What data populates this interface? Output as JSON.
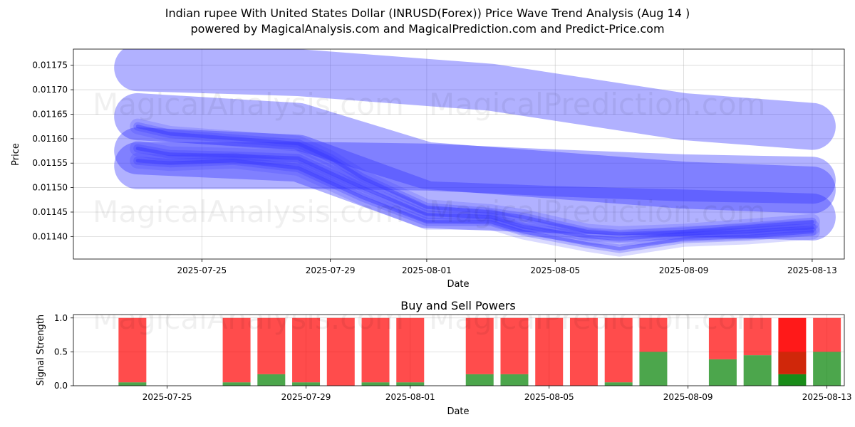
{
  "title": "Indian rupee With United States Dollar (INRUSD(Forex)) Price Wave Trend Analysis (Aug 14 )",
  "subtitle": "powered by MagicalAnalysis.com and MagicalPrediction.com and Predict-Price.com",
  "watermarks": [
    "MagicalAnalysis.com",
    "MagicalPrediction.com"
  ],
  "colors": {
    "wave": "#3333ff",
    "sell": "#ff0000",
    "buy": "#008000"
  },
  "chart_data": [
    {
      "type": "line",
      "xlabel": "Date",
      "ylabel": "Price",
      "x_ticks": [
        "2025-07-25",
        "2025-07-29",
        "2025-08-01",
        "2025-08-05",
        "2025-08-09",
        "2025-08-13"
      ],
      "y_ticks": [
        "0.01140",
        "0.01145",
        "0.01150",
        "0.01155",
        "0.01160",
        "0.01165",
        "0.01170",
        "0.01175"
      ],
      "xlim": [
        "2025-07-21",
        "2025-08-14"
      ],
      "ylim": [
        0.011354,
        0.011783
      ],
      "grid": true,
      "bands": [
        {
          "name": "",
          "x": [
            "2025-07-23",
            "2025-07-28",
            "2025-08-01",
            "2025-08-03",
            "2025-08-06",
            "2025-08-09",
            "2025-08-13"
          ],
          "values": [
            0.011745,
            0.011735,
            0.011715,
            0.011705,
            0.011675,
            0.011645,
            0.011625
          ]
        },
        {
          "name": "",
          "x": [
            "2025-07-23",
            "2025-07-28",
            "2025-08-01",
            "2025-08-05",
            "2025-08-09",
            "2025-08-13"
          ],
          "values": [
            0.011645,
            0.011625,
            0.011545,
            0.011525,
            0.011505,
            0.011495
          ]
        },
        {
          "name": "",
          "x": [
            "2025-07-23",
            "2025-07-29",
            "2025-08-01",
            "2025-08-05",
            "2025-08-09",
            "2025-08-13"
          ],
          "values": [
            0.011545,
            0.011545,
            0.011542,
            0.01153,
            0.01152,
            0.011515
          ]
        },
        {
          "name": "",
          "x": [
            "2025-07-23",
            "2025-07-28",
            "2025-08-01",
            "2025-08-05",
            "2025-08-09",
            "2025-08-13"
          ],
          "values": [
            0.011575,
            0.01156,
            0.011465,
            0.011455,
            0.011448,
            0.01144
          ]
        }
      ],
      "series": [
        {
          "name": "",
          "x": [
            "2025-07-23",
            "2025-07-24",
            "2025-07-26",
            "2025-07-28",
            "2025-07-29",
            "2025-07-30",
            "2025-08-01",
            "2025-08-03",
            "2025-08-04",
            "2025-08-06",
            "2025-08-07",
            "2025-08-09",
            "2025-08-11",
            "2025-08-12",
            "2025-08-13"
          ],
          "values": [
            0.01158,
            0.011568,
            0.011565,
            0.01156,
            0.01153,
            0.0115,
            0.011445,
            0.01144,
            0.01142,
            0.0114,
            0.011395,
            0.011405,
            0.01141,
            0.011415,
            0.011418
          ]
        },
        {
          "name": "",
          "x": [
            "2025-07-23",
            "2025-07-24",
            "2025-07-26",
            "2025-07-28",
            "2025-07-29",
            "2025-07-30",
            "2025-08-01",
            "2025-08-03",
            "2025-08-04",
            "2025-08-06",
            "2025-08-07",
            "2025-08-09",
            "2025-08-11",
            "2025-08-12",
            "2025-08-13"
          ],
          "values": [
            0.011625,
            0.01161,
            0.0116,
            0.01159,
            0.01156,
            0.01152,
            0.01146,
            0.01145,
            0.01144,
            0.01141,
            0.011405,
            0.01141,
            0.01142,
            0.011425,
            0.01143
          ]
        },
        {
          "name": "",
          "x": [
            "2025-07-23",
            "2025-07-24",
            "2025-07-26",
            "2025-07-28",
            "2025-07-29",
            "2025-07-30",
            "2025-08-01",
            "2025-08-03",
            "2025-08-04",
            "2025-08-06",
            "2025-08-07",
            "2025-08-09",
            "2025-08-11",
            "2025-08-12",
            "2025-08-13"
          ],
          "values": [
            0.011555,
            0.01155,
            0.011555,
            0.01154,
            0.01151,
            0.01148,
            0.01143,
            0.01143,
            0.01141,
            0.011385,
            0.011375,
            0.011395,
            0.0114,
            0.011405,
            0.01141
          ]
        }
      ]
    },
    {
      "type": "bar",
      "title": "Buy and Sell Powers",
      "xlabel": "Date",
      "ylabel": "Signal Strength",
      "x_ticks": [
        "2025-07-25",
        "2025-07-29",
        "2025-08-01",
        "2025-08-05",
        "2025-08-09",
        "2025-08-13"
      ],
      "y_ticks": [
        "0.0",
        "0.5",
        "1.0"
      ],
      "ylim": [
        0,
        1.05
      ],
      "grid": true,
      "categories": [
        "2025-07-24",
        "2025-07-27",
        "2025-07-28",
        "2025-07-29",
        "2025-07-30",
        "2025-07-31",
        "2025-08-01",
        "2025-08-03",
        "2025-08-04",
        "2025-08-05",
        "2025-08-06",
        "2025-08-07",
        "2025-08-08",
        "2025-08-10",
        "2025-08-11",
        "2025-08-12",
        "2025-08-13"
      ],
      "series": [
        {
          "name": "Buy",
          "values": [
            0.05,
            0.05,
            0.17,
            0.05,
            0.0,
            0.05,
            0.05,
            0.17,
            0.17,
            0.0,
            0.0,
            0.05,
            0.5,
            0.39,
            0.45,
            0.17,
            0.5
          ]
        },
        {
          "name": "Sell",
          "values": [
            0.95,
            0.95,
            0.83,
            0.95,
            1.0,
            0.95,
            0.95,
            0.83,
            0.83,
            1.0,
            1.0,
            0.95,
            0.5,
            0.61,
            0.55,
            0.83,
            0.5
          ]
        }
      ]
    }
  ]
}
